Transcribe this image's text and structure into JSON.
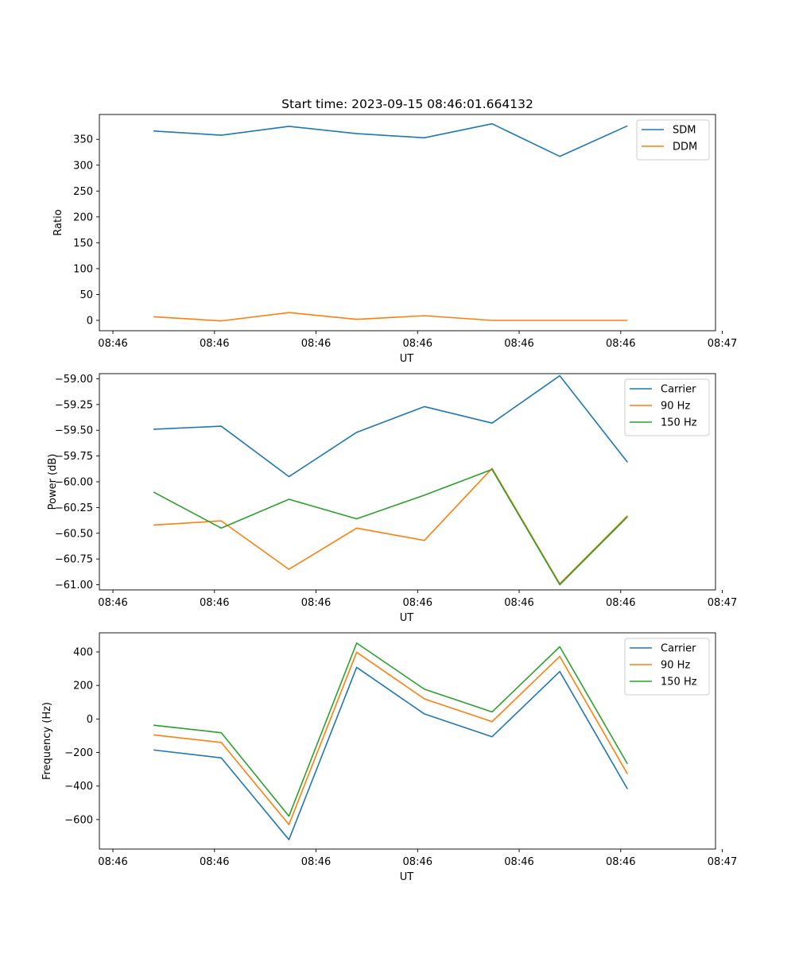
{
  "chart_data": [
    {
      "type": "line",
      "title": "Start time: 2023-09-15 08:46:01.664132",
      "xlabel": "UT",
      "ylabel": "Ratio",
      "x": [
        1,
        2,
        3,
        4,
        5,
        6,
        7,
        8
      ],
      "xlim": [
        0.2,
        9.3
      ],
      "xticks": [
        0.4,
        1.9,
        3.4,
        4.9,
        6.4,
        7.9,
        9.4
      ],
      "xtick_labels": [
        "08:46",
        "08:46",
        "08:46",
        "08:46",
        "08:46",
        "08:46",
        "08:47"
      ],
      "ylim": [
        -20,
        398
      ],
      "yticks": [
        0,
        50,
        100,
        150,
        200,
        250,
        300,
        350
      ],
      "ytick_labels": [
        "0",
        "50",
        "100",
        "150",
        "200",
        "250",
        "300",
        "350"
      ],
      "legend_position": "top-right",
      "series": [
        {
          "name": "SDM",
          "color": "#1f77b4",
          "values": [
            366,
            358,
            375,
            361,
            353,
            380,
            317,
            376
          ]
        },
        {
          "name": "DDM",
          "color": "#ff7f0e",
          "values": [
            7,
            -1,
            15,
            2,
            9,
            0,
            0,
            0
          ]
        }
      ]
    },
    {
      "type": "line",
      "title": "",
      "xlabel": "UT",
      "ylabel": "Power (dB)",
      "x": [
        1,
        2,
        3,
        4,
        5,
        6,
        7,
        8
      ],
      "xlim": [
        0.2,
        9.3
      ],
      "xticks": [
        0.4,
        1.9,
        3.4,
        4.9,
        6.4,
        7.9,
        9.4
      ],
      "xtick_labels": [
        "08:46",
        "08:46",
        "08:46",
        "08:46",
        "08:46",
        "08:46",
        "08:47"
      ],
      "ylim": [
        -61.05,
        -58.95
      ],
      "yticks": [
        -61.0,
        -60.75,
        -60.5,
        -60.25,
        -60.0,
        -59.75,
        -59.5,
        -59.25,
        -59.0
      ],
      "ytick_labels": [
        "−61.00",
        "−60.75",
        "−60.50",
        "−60.25",
        "−60.00",
        "−59.75",
        "−59.50",
        "−59.25",
        "−59.00"
      ],
      "legend_position": "top-right",
      "series": [
        {
          "name": "Carrier",
          "color": "#1f77b4",
          "values": [
            -59.49,
            -59.46,
            -59.95,
            -59.52,
            -59.27,
            -59.43,
            -58.97,
            -59.81
          ]
        },
        {
          "name": "90 Hz",
          "color": "#ff7f0e",
          "values": [
            -60.42,
            -60.38,
            -60.85,
            -60.45,
            -60.57,
            -59.87,
            -60.99,
            -60.33
          ]
        },
        {
          "name": "150 Hz",
          "color": "#2ca02c",
          "values": [
            -60.1,
            -60.45,
            -60.17,
            -60.36,
            -60.13,
            -59.88,
            -61.0,
            -60.34
          ]
        }
      ]
    },
    {
      "type": "line",
      "title": "",
      "xlabel": "UT",
      "ylabel": "Frequency (Hz)",
      "x": [
        1,
        2,
        3,
        4,
        5,
        6,
        7,
        8
      ],
      "xlim": [
        0.2,
        9.3
      ],
      "xticks": [
        0.4,
        1.9,
        3.4,
        4.9,
        6.4,
        7.9,
        9.4
      ],
      "xtick_labels": [
        "08:46",
        "08:46",
        "08:46",
        "08:46",
        "08:46",
        "08:46",
        "08:47"
      ],
      "ylim": [
        -776,
        514
      ],
      "yticks": [
        -600,
        -400,
        -200,
        0,
        200,
        400
      ],
      "ytick_labels": [
        "−600",
        "−400",
        "−200",
        "0",
        "200",
        "400"
      ],
      "legend_position": "top-right",
      "series": [
        {
          "name": "Carrier",
          "color": "#1f77b4",
          "values": [
            -185,
            -232,
            -720,
            308,
            30,
            -106,
            283,
            -418
          ]
        },
        {
          "name": "90 Hz",
          "color": "#ff7f0e",
          "values": [
            -95,
            -140,
            -630,
            398,
            120,
            -16,
            373,
            -328
          ]
        },
        {
          "name": "150 Hz",
          "color": "#2ca02c",
          "values": [
            -37,
            -82,
            -580,
            453,
            178,
            42,
            431,
            -268
          ]
        }
      ]
    }
  ]
}
